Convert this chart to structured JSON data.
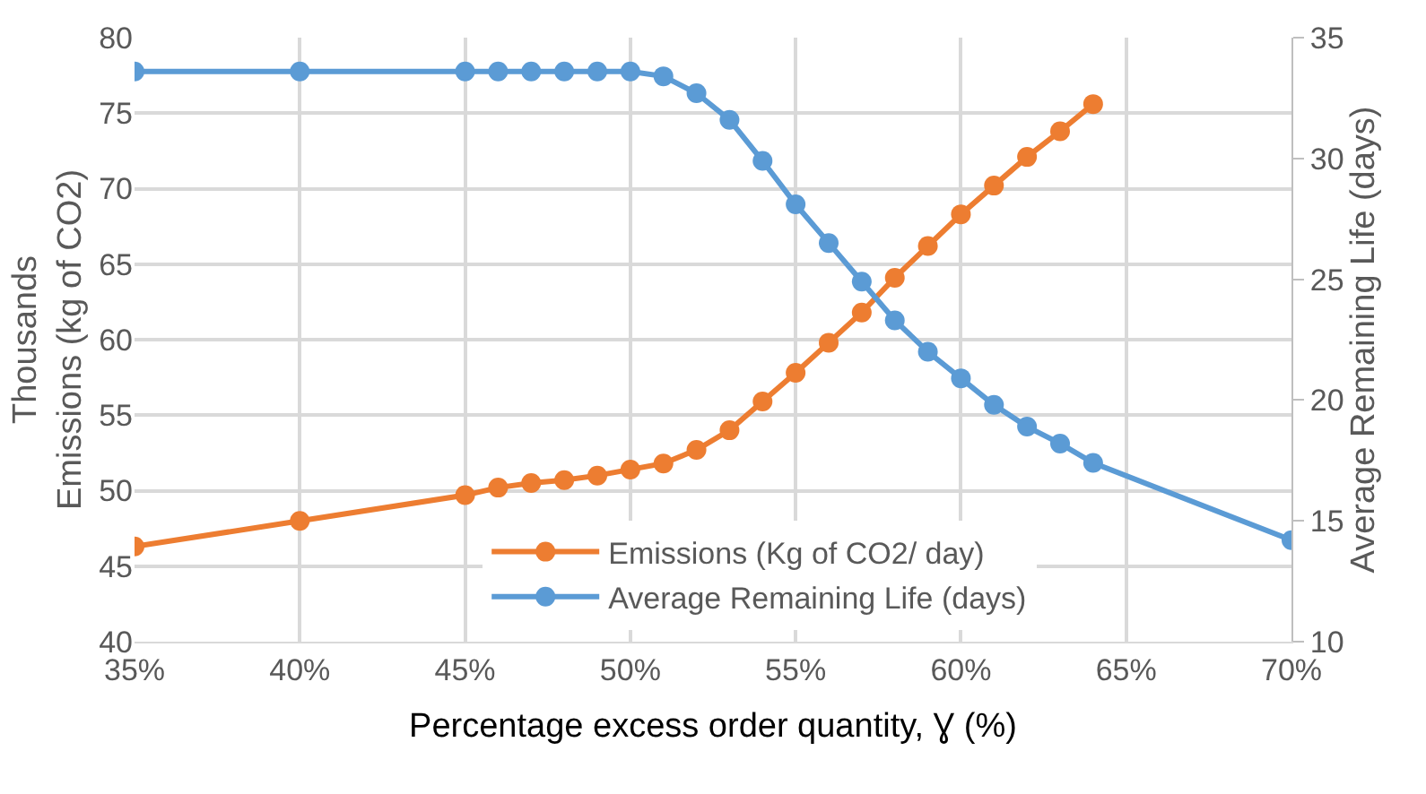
{
  "chart_data": {
    "type": "line",
    "xlabel": "Percentage excess order quantity, Ɣ (%)",
    "ylabel": "Thousands\nEmissions (kg of CO2)",
    "y2label": "Average Remaining Life (days)",
    "series": [
      {
        "name": "Emissions (Kg of CO2/ day)",
        "color": "#ed7d31",
        "x": [
          35,
          40,
          45,
          46,
          47,
          48,
          49,
          50,
          51,
          52,
          53,
          54,
          55,
          56,
          57,
          58,
          59,
          60,
          61,
          62,
          63,
          64
        ],
        "values": [
          46.3,
          48.0,
          49.7,
          50.2,
          50.5,
          50.7,
          51.0,
          51.4,
          51.8,
          52.7,
          54.0,
          55.9,
          57.8,
          59.8,
          61.8,
          64.1,
          66.2,
          68.3,
          70.2,
          72.1,
          73.8,
          75.6
        ]
      },
      {
        "name": "Average Remaining Life (days)",
        "color": "#5b9bd5",
        "axis": "y2",
        "x": [
          35,
          40,
          45,
          46,
          47,
          48,
          49,
          50,
          51,
          52,
          53,
          54,
          55,
          56,
          57,
          58,
          59,
          60,
          61,
          62,
          63,
          64,
          70
        ],
        "values": [
          33.6,
          33.6,
          33.6,
          33.6,
          33.6,
          33.6,
          33.6,
          33.6,
          33.4,
          32.7,
          31.6,
          29.9,
          28.1,
          26.5,
          24.9,
          23.3,
          22.0,
          20.9,
          19.8,
          18.9,
          18.2,
          17.4,
          14.2
        ]
      }
    ],
    "xlim": [
      35,
      70
    ],
    "xticks": [
      {
        "value": 35,
        "label": "35%"
      },
      {
        "value": 40,
        "label": "40%"
      },
      {
        "value": 45,
        "label": "45%"
      },
      {
        "value": 50,
        "label": "50%"
      },
      {
        "value": 55,
        "label": "55%"
      },
      {
        "value": 60,
        "label": "60%"
      },
      {
        "value": 65,
        "label": "65%"
      },
      {
        "value": 70,
        "label": "70%"
      }
    ],
    "ylim": [
      40,
      80
    ],
    "yticks": [
      40,
      45,
      50,
      55,
      60,
      65,
      70,
      75,
      80
    ],
    "y2lim": [
      10,
      35
    ],
    "y2ticks": [
      10,
      15,
      20,
      25,
      30,
      35
    ],
    "grid": true,
    "legend": "bottom",
    "marker": "circle",
    "line_style": "solid"
  }
}
